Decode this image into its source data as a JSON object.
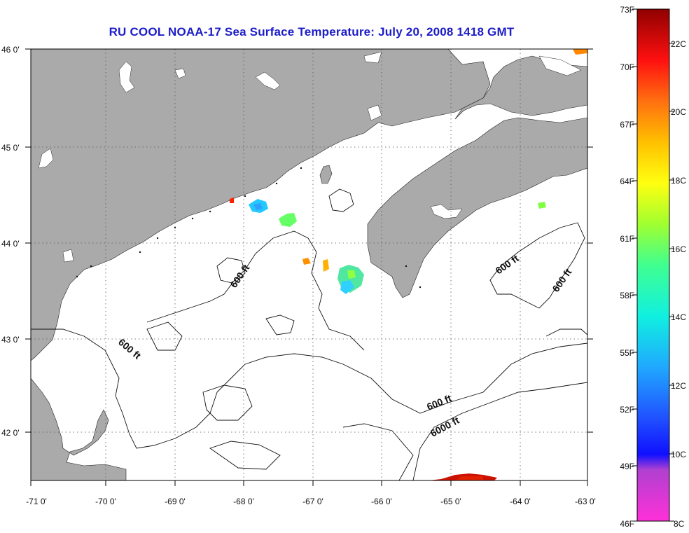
{
  "title": "RU COOL  NOAA-17  Sea Surface Temperature:  July 20, 2008 1418 GMT",
  "axes": {
    "lon_ticks": [
      "-71 0'",
      "-70 0'",
      "-69 0'",
      "-68 0'",
      "-67 0'",
      "-66 0'",
      "-65 0'",
      "-64 0'",
      "-63 0'"
    ],
    "lat_ticks": [
      "46 0'",
      "45 0'",
      "44 0'",
      "43 0'",
      "42 0'"
    ],
    "lon_range": [
      -71,
      -63
    ],
    "lat_range": [
      41.5,
      46
    ]
  },
  "contour_labels": [
    "600 ft",
    "600 ft",
    "600 ft",
    "600 ft",
    "600 ft",
    "6000 ft"
  ],
  "colorbar": {
    "fahrenheit": [
      "73F",
      "70F",
      "67F",
      "64F",
      "61F",
      "58F",
      "55F",
      "52F",
      "49F",
      "46F"
    ],
    "celsius": [
      "22C",
      "20C",
      "18C",
      "16C",
      "14C",
      "12C",
      "10C",
      "8C"
    ],
    "range_c": [
      8,
      23
    ]
  },
  "colors": {
    "land": "#aaaaaa",
    "ocean": "#ffffff",
    "title": "#1c1cc8"
  }
}
